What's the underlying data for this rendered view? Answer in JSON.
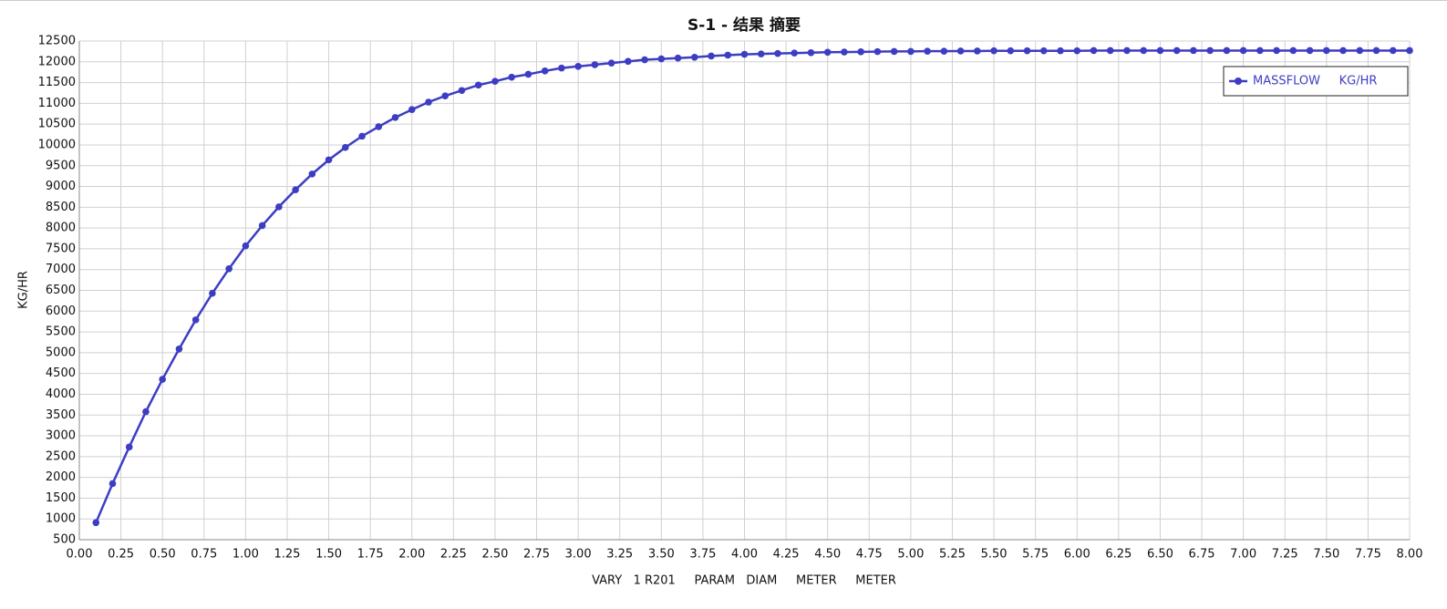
{
  "chart_data": {
    "type": "line",
    "title": "S-1 - 结果 摘要",
    "x_label": "VARY   1 R201     PARAM   DIAM     METER     METER",
    "y_label": "KG/HR",
    "x": [
      0.1,
      0.2,
      0.3,
      0.4,
      0.5,
      0.6,
      0.7,
      0.8,
      0.9,
      1.0,
      1.1,
      1.2,
      1.3,
      1.4,
      1.5,
      1.6,
      1.7,
      1.8,
      1.9,
      2.0,
      2.1,
      2.2,
      2.3,
      2.4,
      2.5,
      2.6,
      2.7,
      2.8,
      2.9,
      3.0,
      3.1,
      3.2,
      3.3,
      3.4,
      3.5,
      3.6,
      3.7,
      3.8,
      3.9,
      4.0,
      4.1,
      4.2,
      4.3,
      4.4,
      4.5,
      4.6,
      4.7,
      4.8,
      4.9,
      5.0,
      5.1,
      5.2,
      5.3,
      5.4,
      5.5,
      5.6,
      5.7,
      5.8,
      5.9,
      6.0,
      6.1,
      6.2,
      6.3,
      6.4,
      6.5,
      6.6,
      6.7,
      6.8,
      6.9,
      7.0,
      7.1,
      7.2,
      7.3,
      7.4,
      7.5,
      7.6,
      7.7,
      7.8,
      7.9,
      8.0
    ],
    "series": [
      {
        "name": "MASSFLOW     KG/HR",
        "color": "#3d3dc4",
        "values": [
          910,
          1850,
          2730,
          3580,
          4360,
          5090,
          5790,
          6430,
          7020,
          7570,
          8060,
          8510,
          8920,
          9300,
          9640,
          9940,
          10210,
          10440,
          10660,
          10850,
          11030,
          11180,
          11310,
          11440,
          11530,
          11630,
          11700,
          11780,
          11850,
          11890,
          11930,
          11970,
          12010,
          12050,
          12070,
          12090,
          12110,
          12140,
          12160,
          12180,
          12190,
          12200,
          12210,
          12220,
          12230,
          12235,
          12240,
          12245,
          12250,
          12250,
          12255,
          12255,
          12260,
          12260,
          12265,
          12265,
          12265,
          12265,
          12265,
          12265,
          12270,
          12270,
          12270,
          12270,
          12270,
          12270,
          12270,
          12270,
          12270,
          12270,
          12270,
          12270,
          12270,
          12270,
          12270,
          12270,
          12270,
          12270,
          12270,
          12270
        ]
      }
    ],
    "xlim": [
      0,
      8
    ],
    "ylim": [
      500,
      12500
    ],
    "xticks": [
      {
        "value": 0,
        "label": "0.00"
      },
      {
        "value": 0.25,
        "label": "0.25"
      },
      {
        "value": 0.5,
        "label": "0.50"
      },
      {
        "value": 0.75,
        "label": "0.75"
      },
      {
        "value": 1,
        "label": "1.00"
      },
      {
        "value": 1.25,
        "label": "1.25"
      },
      {
        "value": 1.5,
        "label": "1.50"
      },
      {
        "value": 1.75,
        "label": "1.75"
      },
      {
        "value": 2,
        "label": "2.00"
      },
      {
        "value": 2.25,
        "label": "2.25"
      },
      {
        "value": 2.5,
        "label": "2.50"
      },
      {
        "value": 2.75,
        "label": "2.75"
      },
      {
        "value": 3,
        "label": "3.00"
      },
      {
        "value": 3.25,
        "label": "3.25"
      },
      {
        "value": 3.5,
        "label": "3.50"
      },
      {
        "value": 3.75,
        "label": "3.75"
      },
      {
        "value": 4,
        "label": "4.00"
      },
      {
        "value": 4.25,
        "label": "4.25"
      },
      {
        "value": 4.5,
        "label": "4.50"
      },
      {
        "value": 4.75,
        "label": "4.75"
      },
      {
        "value": 5,
        "label": "5.00"
      },
      {
        "value": 5.25,
        "label": "5.25"
      },
      {
        "value": 5.5,
        "label": "5.50"
      },
      {
        "value": 5.75,
        "label": "5.75"
      },
      {
        "value": 6,
        "label": "6.00"
      },
      {
        "value": 6.25,
        "label": "6.25"
      },
      {
        "value": 6.5,
        "label": "6.50"
      },
      {
        "value": 6.75,
        "label": "6.75"
      },
      {
        "value": 7,
        "label": "7.00"
      },
      {
        "value": 7.25,
        "label": "7.25"
      },
      {
        "value": 7.5,
        "label": "7.50"
      },
      {
        "value": 7.75,
        "label": "7.75"
      },
      {
        "value": 8,
        "label": "8.00"
      }
    ],
    "yticks": [
      500,
      1000,
      1500,
      2000,
      2500,
      3000,
      3500,
      4000,
      4500,
      5000,
      5500,
      6000,
      6500,
      7000,
      7500,
      8000,
      8500,
      9000,
      9500,
      10000,
      10500,
      11000,
      11500,
      12000,
      12500
    ],
    "grid": true,
    "legend": "top-right"
  }
}
